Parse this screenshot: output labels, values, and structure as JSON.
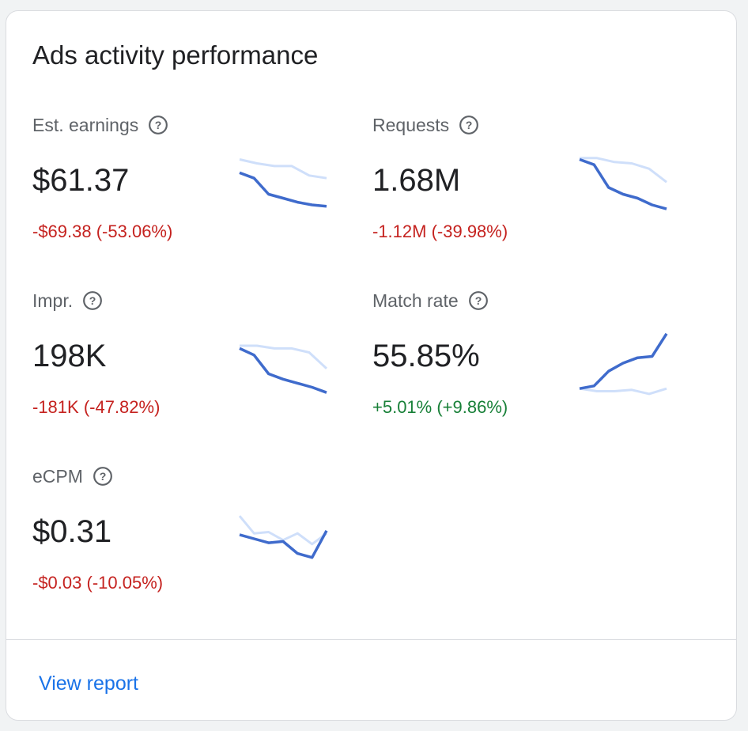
{
  "card": {
    "title": "Ads activity performance",
    "view_report_label": "View report"
  },
  "colors": {
    "negative": "#c5221f",
    "positive": "#188038",
    "current_series": "#3f6bcc",
    "previous_series": "#cfdffa",
    "link": "#1a73e8"
  },
  "metrics": [
    {
      "label": "Est. earnings",
      "value": "$61.37",
      "change": "-$69.38 (-53.06%)",
      "trend": "negative",
      "current": [
        10,
        9.2,
        6.8,
        6.2,
        5.6,
        5.2,
        5.0
      ],
      "previous": [
        12,
        11.4,
        11.0,
        11.0,
        9.6,
        9.2
      ]
    },
    {
      "label": "Requests",
      "value": "1.68M",
      "change": "-1.12M (-39.98%)",
      "trend": "negative",
      "current": [
        12,
        11.2,
        7.8,
        6.8,
        6.2,
        5.2,
        4.6
      ],
      "previous": [
        12.2,
        12.2,
        11.6,
        11.4,
        10.6,
        8.6
      ]
    },
    {
      "label": "Impr.",
      "value": "198K",
      "change": "-181K (-47.82%)",
      "trend": "negative",
      "current": [
        10,
        9.0,
        6.2,
        5.4,
        4.8,
        4.2,
        3.4
      ],
      "previous": [
        10.4,
        10.4,
        10.0,
        10.0,
        9.4,
        7.0
      ]
    },
    {
      "label": "Match rate",
      "value": "55.85%",
      "change": "+5.01% (+9.86%)",
      "trend": "positive",
      "current": [
        4.0,
        4.4,
        6.6,
        7.8,
        8.6,
        8.8,
        12.2
      ],
      "previous": [
        4.0,
        3.6,
        3.6,
        3.8,
        3.2,
        4.0
      ]
    },
    {
      "label": "eCPM",
      "value": "$0.31",
      "change": "-$0.03 (-10.05%)",
      "trend": "negative",
      "current": [
        8.4,
        7.8,
        7.2,
        7.4,
        5.6,
        5.0,
        9.0
      ],
      "previous": [
        11.2,
        8.6,
        8.8,
        7.6,
        8.6,
        7.0,
        8.6
      ]
    }
  ]
}
